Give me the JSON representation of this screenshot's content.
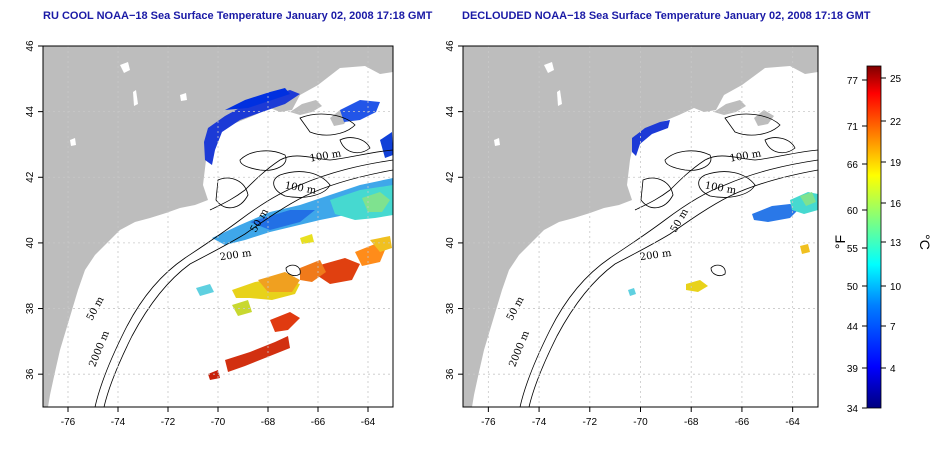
{
  "panels": [
    {
      "title": "RU COOL NOAA−18 Sea Surface Temperature January 02, 2008 17:18 GMT"
    },
    {
      "title": "DECLOUDED NOAA−18 Sea Surface Temperature January 02, 2008 17:18 GMT"
    }
  ],
  "map": {
    "lon_ticks": [
      "-76",
      "-74",
      "-72",
      "-70",
      "-68",
      "-66",
      "-64"
    ],
    "lat_ticks": [
      "46",
      "44",
      "42",
      "40",
      "38",
      "36"
    ],
    "lon_range": [
      -77,
      -63
    ],
    "lat_range": [
      35,
      46
    ],
    "contour_labels": [
      "100 m",
      "100 m",
      "50 m",
      "200 m",
      "50 m",
      "2000 m"
    ],
    "land_color": "#bdbdbd",
    "grid": true
  },
  "colorbar": {
    "fahrenheit_label": "°F",
    "celsius_label": "°C",
    "fahrenheit_ticks": [
      "77",
      "71",
      "66",
      "60",
      "55",
      "50",
      "44",
      "39",
      "34"
    ],
    "celsius_ticks": [
      "25",
      "22",
      "19",
      "16",
      "13",
      "10",
      "7",
      "4"
    ],
    "colors": [
      "#00007f",
      "#0000ff",
      "#007fff",
      "#00ffff",
      "#7fff7f",
      "#ffff00",
      "#ff7f00",
      "#ff0000",
      "#7f0000"
    ]
  }
}
